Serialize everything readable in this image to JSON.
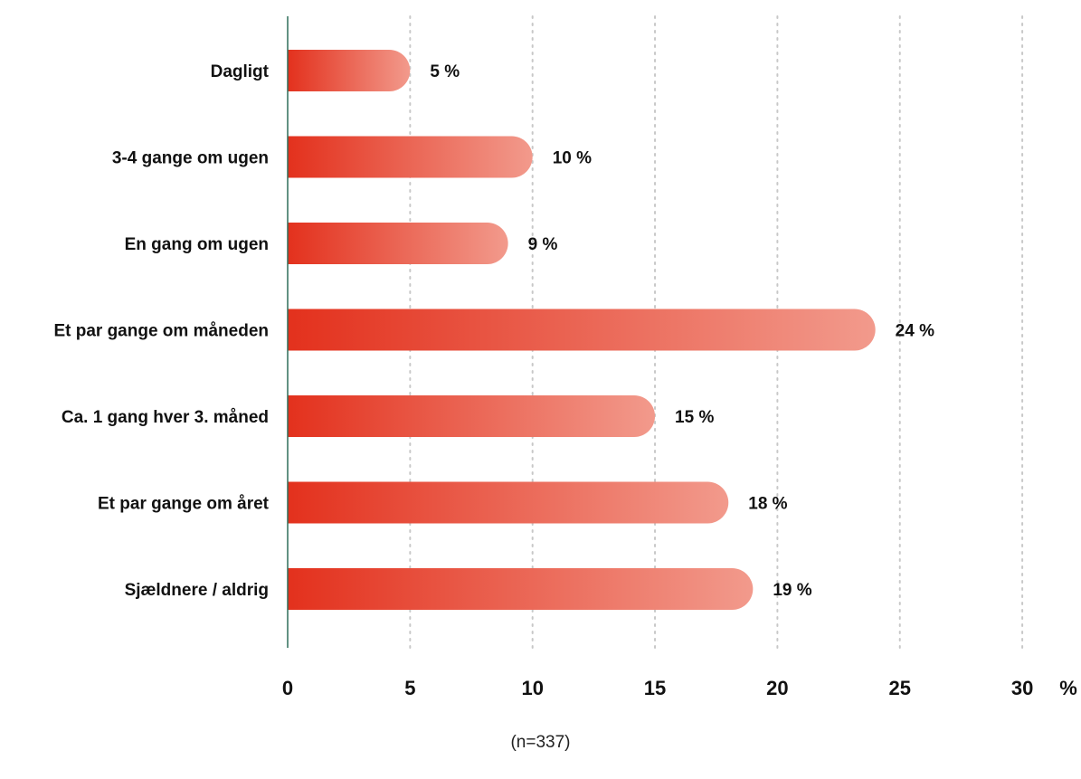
{
  "chart_data": {
    "type": "bar",
    "orientation": "horizontal",
    "categories": [
      "Dagligt",
      "3-4 gange om ugen",
      "En gang om ugen",
      "Et par gange om måneden",
      "Ca. 1 gang hver 3. måned",
      "Et par gange om året",
      "Sjældnere / aldrig"
    ],
    "values": [
      5,
      10,
      9,
      24,
      15,
      18,
      19
    ],
    "value_labels": [
      "5 %",
      "10 %",
      "9 %",
      "24 %",
      "15 %",
      "18 %",
      "19 %"
    ],
    "xlim": [
      0,
      30
    ],
    "xticks": [
      "0",
      "5",
      "10",
      "15",
      "20",
      "25",
      "30"
    ],
    "xunit": "%",
    "grid": "vertical dotted",
    "bar_color_start": "#e3311d",
    "bar_color_end": "#f29a8c",
    "axis_color": "#2f6f5a",
    "grid_color": "#c8c8c8"
  },
  "footnote": "(n=337)"
}
